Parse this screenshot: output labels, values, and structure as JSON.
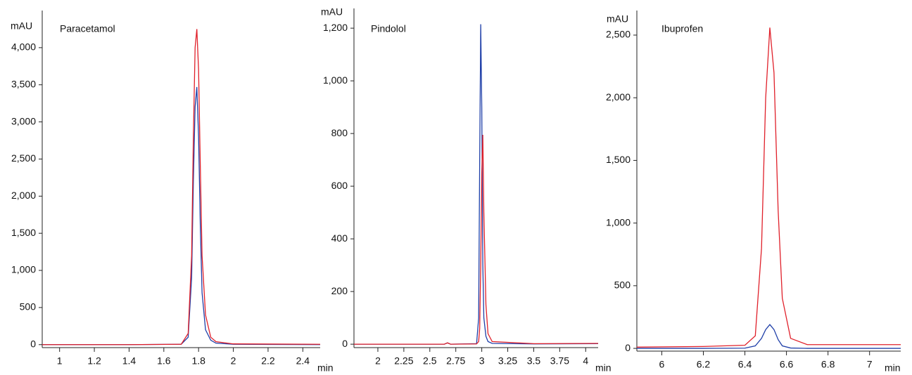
{
  "chart_data": [
    {
      "type": "line",
      "title": "Paracetamol",
      "y_label": "mAU",
      "x_label": "min",
      "x": [
        0.9,
        1.4,
        1.7,
        1.74,
        1.76,
        1.77,
        1.78,
        1.79,
        1.8,
        1.81,
        1.82,
        1.84,
        1.87,
        1.9,
        2.0,
        2.5
      ],
      "series": [
        {
          "color": "#1f3fa8",
          "values": [
            0,
            0,
            5,
            100,
            900,
            2200,
            3200,
            3470,
            2800,
            1600,
            700,
            200,
            60,
            20,
            5,
            0
          ]
        },
        {
          "color": "#e0202a",
          "values": [
            0,
            0,
            5,
            150,
            1200,
            2800,
            4000,
            4250,
            3700,
            2400,
            1200,
            400,
            100,
            40,
            10,
            5
          ]
        }
      ],
      "xlim": [
        0.9,
        2.5
      ],
      "ylim": [
        -40,
        4500
      ],
      "xticks": [
        1,
        1.2,
        1.4,
        1.6,
        1.8,
        2,
        2.2,
        2.4
      ],
      "yticks": [
        0,
        500,
        {
          "value": 1000,
          "label": "1,000"
        },
        {
          "value": 1500,
          "label": "1,500"
        },
        {
          "value": 2000,
          "label": "2,000"
        },
        {
          "value": 2500,
          "label": "2,500"
        },
        {
          "value": 3000,
          "label": "3,000"
        },
        {
          "value": 3500,
          "label": "3,500"
        },
        {
          "value": 4000,
          "label": "4,000"
        }
      ]
    },
    {
      "type": "line",
      "title": "Pindolol",
      "y_label": "mAU",
      "x_label": "min",
      "x": [
        1.77,
        2.5,
        2.64,
        2.67,
        2.7,
        2.95,
        2.97,
        2.98,
        2.99,
        3.0,
        3.01,
        3.02,
        3.04,
        3.06,
        3.1,
        3.5,
        4.12
      ],
      "series": [
        {
          "color": "#1f3fa8",
          "values": [
            0,
            0,
            0,
            5,
            0,
            2,
            100,
            700,
            1215,
            900,
            300,
            100,
            30,
            10,
            3,
            1,
            2
          ]
        },
        {
          "color": "#e0202a",
          "values": [
            0,
            0,
            0,
            5,
            0,
            1,
            10,
            60,
            300,
            650,
            795,
            500,
            150,
            40,
            10,
            2,
            3
          ]
        }
      ],
      "xlim": [
        1.77,
        4.12
      ],
      "ylim": [
        -13,
        1275
      ],
      "xticks": [
        2,
        2.25,
        2.5,
        2.75,
        3,
        3.25,
        3.5,
        3.75,
        4
      ],
      "yticks": [
        0,
        200,
        400,
        600,
        800,
        {
          "value": 1000,
          "label": "1,000"
        },
        {
          "value": 1200,
          "label": "1,200"
        }
      ]
    },
    {
      "type": "line",
      "title": "Ibuprofen",
      "y_label": "mAU",
      "x_label": "min",
      "x": [
        5.88,
        6.2,
        6.4,
        6.45,
        6.48,
        6.5,
        6.52,
        6.54,
        6.56,
        6.58,
        6.62,
        6.7,
        7.15
      ],
      "series": [
        {
          "color": "#1f3fa8",
          "values": [
            0,
            0,
            2,
            20,
            80,
            150,
            190,
            150,
            70,
            20,
            3,
            0,
            0
          ]
        },
        {
          "color": "#e0202a",
          "values": [
            10,
            15,
            25,
            100,
            800,
            2000,
            2560,
            2200,
            1100,
            400,
            80,
            30,
            30
          ]
        }
      ],
      "xlim": [
        5.88,
        7.15
      ],
      "ylim": [
        -22,
        2696
      ],
      "xticks": [
        6,
        6.2,
        6.4,
        6.6,
        6.8,
        7
      ],
      "yticks": [
        0,
        500,
        {
          "value": 1000,
          "label": "1,000"
        },
        {
          "value": 1500,
          "label": "1,500"
        },
        {
          "value": 2000,
          "label": "2,000"
        },
        {
          "value": 2500,
          "label": "2,500"
        }
      ]
    }
  ]
}
